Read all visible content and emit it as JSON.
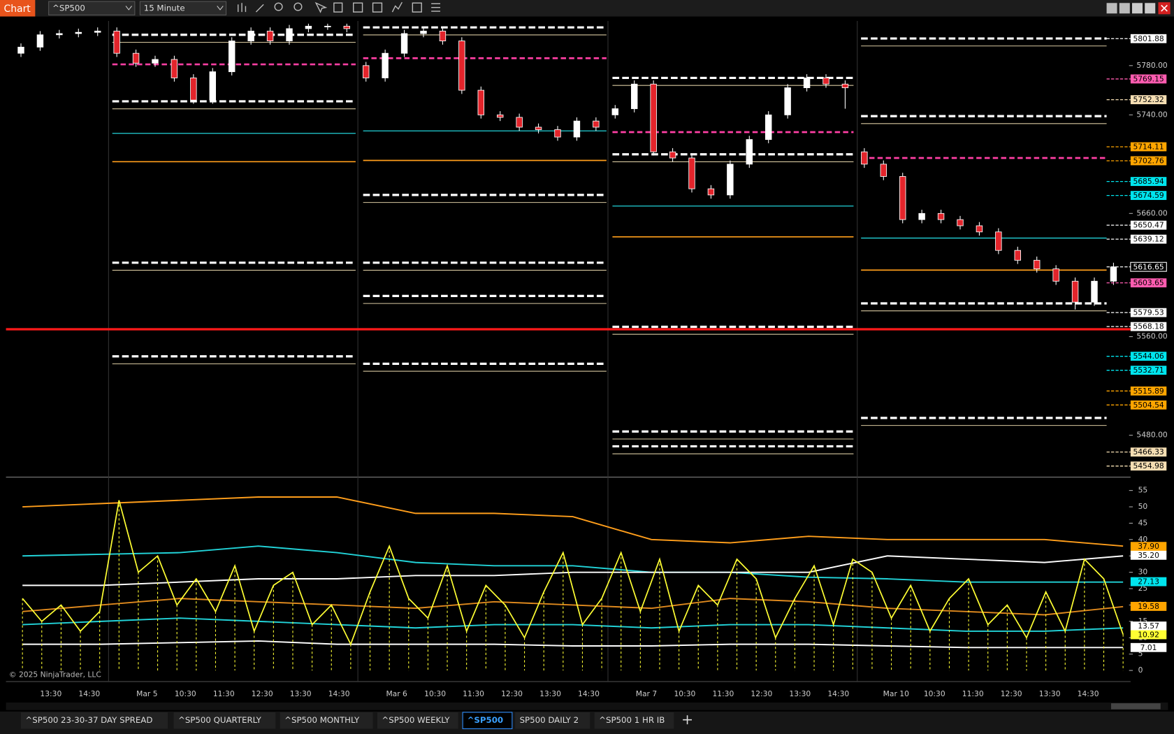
{
  "toolbar": {
    "title": "Chart",
    "instrument": "^SP500",
    "interval": "15 Minute"
  },
  "price_panel": {
    "type": "candlestick",
    "ylim": [
      5446,
      5815
    ],
    "yticks": [
      {
        "value": 5480,
        "label": "5480.00"
      },
      {
        "value": 5560,
        "label": "5560.00"
      },
      {
        "value": 5660,
        "label": "5660.00"
      },
      {
        "value": 5740,
        "label": "5740.00"
      },
      {
        "value": 5780,
        "label": "5780.00"
      }
    ],
    "candles": [
      [
        5790,
        5798,
        5787,
        5795
      ],
      [
        5795,
        5808,
        5792,
        5805
      ],
      [
        5805,
        5809,
        5802,
        5806
      ],
      [
        5806,
        5810,
        5803,
        5807
      ],
      [
        5807,
        5811,
        5804,
        5808
      ],
      [
        5808,
        5811,
        5787,
        5790
      ],
      [
        5790,
        5793,
        5779,
        5782
      ],
      [
        5782,
        5788,
        5779,
        5785
      ],
      [
        5785,
        5788,
        5767,
        5770
      ],
      [
        5770,
        5773,
        5749,
        5752
      ],
      [
        5752,
        5778,
        5749,
        5775
      ],
      [
        5775,
        5803,
        5772,
        5800
      ],
      [
        5800,
        5811,
        5797,
        5808
      ],
      [
        5808,
        5811,
        5797,
        5800
      ],
      [
        5800,
        5813,
        5797,
        5810
      ],
      [
        5810,
        5814,
        5807,
        5812
      ],
      [
        5812,
        5814,
        5809,
        5812
      ],
      [
        5812,
        5814,
        5807,
        5810
      ],
      [
        5780,
        5783,
        5767,
        5770
      ],
      [
        5770,
        5793,
        5767,
        5790
      ],
      [
        5790,
        5809,
        5787,
        5806
      ],
      [
        5806,
        5811,
        5803,
        5808
      ],
      [
        5808,
        5811,
        5797,
        5800
      ],
      [
        5800,
        5803,
        5757,
        5760
      ],
      [
        5760,
        5763,
        5737,
        5740
      ],
      [
        5740,
        5743,
        5735,
        5738
      ],
      [
        5738,
        5741,
        5727,
        5730
      ],
      [
        5730,
        5733,
        5725,
        5728
      ],
      [
        5728,
        5731,
        5719,
        5722
      ],
      [
        5722,
        5738,
        5719,
        5735
      ],
      [
        5735,
        5738,
        5727,
        5730
      ],
      [
        5740,
        5748,
        5737,
        5745
      ],
      [
        5745,
        5768,
        5742,
        5765
      ],
      [
        5765,
        5768,
        5707,
        5710
      ],
      [
        5710,
        5713,
        5702,
        5705
      ],
      [
        5705,
        5708,
        5677,
        5680
      ],
      [
        5680,
        5683,
        5672,
        5675
      ],
      [
        5675,
        5703,
        5672,
        5700
      ],
      [
        5700,
        5723,
        5697,
        5720
      ],
      [
        5720,
        5743,
        5717,
        5740
      ],
      [
        5740,
        5765,
        5737,
        5762
      ],
      [
        5762,
        5773,
        5759,
        5770
      ],
      [
        5770,
        5773,
        5762,
        5765
      ],
      [
        5765,
        5768,
        5745,
        5762
      ],
      [
        5710,
        5713,
        5697,
        5700
      ],
      [
        5700,
        5703,
        5687,
        5690
      ],
      [
        5690,
        5693,
        5652,
        5655
      ],
      [
        5655,
        5663,
        5652,
        5660
      ],
      [
        5660,
        5663,
        5652,
        5655
      ],
      [
        5655,
        5658,
        5647,
        5650
      ],
      [
        5650,
        5653,
        5642,
        5645
      ],
      [
        5645,
        5648,
        5627,
        5630
      ],
      [
        5630,
        5633,
        5619,
        5622
      ],
      [
        5622,
        5625,
        5612,
        5615
      ],
      [
        5615,
        5618,
        5602,
        5605
      ],
      [
        5605,
        5608,
        5582,
        5588
      ],
      [
        5588,
        5608,
        5585,
        5605
      ],
      [
        5605,
        5620,
        5602,
        5616.65
      ]
    ],
    "sessions": [
      {
        "levels": [
          5805,
          5751,
          5620,
          5544
        ],
        "pink": 5781,
        "orange": 5702,
        "cyan": 5725
      },
      {
        "levels": [
          5811,
          5675,
          5620,
          5593,
          5538
        ],
        "pink": 5786,
        "orange": 5703,
        "cyan": 5727
      },
      {
        "levels": [
          5770,
          5708,
          5568,
          5483,
          5471
        ],
        "pink": 5726,
        "orange": 5641,
        "cyan": 5666
      },
      {
        "levels": [
          5802,
          5739,
          5587,
          5494
        ],
        "pink": 5705,
        "orange": 5614,
        "cyan": 5640
      }
    ],
    "red_line": 5566,
    "markers": [
      {
        "value": 5801.88,
        "color": "#ffffff"
      },
      {
        "value": 5769.15,
        "color": "#ff5cb0"
      },
      {
        "value": 5752.32,
        "color": "#f5deb3"
      },
      {
        "value": 5714.11,
        "color": "#ffa500"
      },
      {
        "value": 5702.76,
        "color": "#ffa500"
      },
      {
        "value": 5685.94,
        "color": "#00e5ee"
      },
      {
        "value": 5674.59,
        "color": "#00e5ee"
      },
      {
        "value": 5650.47,
        "color": "#ffffff"
      },
      {
        "value": 5639.12,
        "color": "#ffffff"
      },
      {
        "value": 5616.65,
        "color": "#000000"
      },
      {
        "value": 5603.65,
        "color": "#ff5cb0"
      },
      {
        "value": 5579.53,
        "color": "#ffffff"
      },
      {
        "value": 5568.18,
        "color": "#ffffff"
      },
      {
        "value": 5544.06,
        "color": "#00e5ee"
      },
      {
        "value": 5532.71,
        "color": "#00e5ee"
      },
      {
        "value": 5515.89,
        "color": "#ffa500"
      },
      {
        "value": 5504.54,
        "color": "#ffa500"
      },
      {
        "value": 5466.33,
        "color": "#f5deb3"
      },
      {
        "value": 5454.98,
        "color": "#f5deb3"
      }
    ]
  },
  "indicator_panel": {
    "type": "line",
    "ylim": [
      -3.4,
      58.4
    ],
    "yticks": [
      0,
      5,
      10,
      15,
      20,
      25,
      30,
      35,
      40,
      45,
      50,
      55
    ],
    "series": [
      {
        "color": "#ff9e1b",
        "values": [
          50,
          51,
          52,
          53,
          53,
          48,
          48,
          47,
          40,
          39,
          41,
          40,
          40,
          40,
          38
        ]
      },
      {
        "color": "#22d3d8",
        "values": [
          35,
          35.5,
          36,
          38,
          36,
          33,
          32,
          32,
          30,
          30,
          28.5,
          28,
          27,
          27,
          27
        ]
      },
      {
        "color": "#ffffff",
        "values": [
          26,
          26,
          27,
          28,
          28,
          29,
          29,
          30,
          30,
          30,
          30,
          35,
          34,
          33,
          35
        ]
      },
      {
        "color": "#e08a1e",
        "values": [
          18,
          20,
          22,
          21,
          20,
          19,
          21,
          20,
          19,
          22,
          21,
          19,
          18,
          17,
          19.5
        ]
      },
      {
        "color": "#22d3d8",
        "values": [
          14,
          15,
          16,
          15,
          14,
          13,
          14,
          14,
          13,
          14,
          14,
          13,
          12,
          12,
          13
        ]
      },
      {
        "color": "#ffffff",
        "values": [
          8,
          8,
          8.5,
          9,
          8,
          8,
          8,
          7.5,
          7.5,
          8,
          8,
          7.5,
          7,
          7,
          7
        ]
      },
      {
        "color": "#ffff33",
        "bars": true,
        "values": [
          22,
          15,
          20,
          12,
          18,
          52,
          30,
          35,
          20,
          28,
          18,
          32,
          12,
          26,
          30,
          14,
          20,
          8,
          24,
          38,
          22,
          16,
          32,
          12,
          26,
          20,
          10,
          24,
          36,
          14,
          22,
          36,
          18,
          34,
          12,
          26,
          20,
          34,
          28,
          10,
          22,
          32,
          14,
          34,
          30,
          16,
          26,
          12,
          22,
          28,
          14,
          20,
          10,
          24,
          12,
          34,
          28,
          11
        ]
      }
    ],
    "markers": [
      {
        "value": 37.9,
        "label": "37.90",
        "color": "#ffa500"
      },
      {
        "value": 35.2,
        "label": "35.20",
        "color": "#ffffff"
      },
      {
        "value": 27.13,
        "color": "#00e5ee"
      },
      {
        "value": 19.58,
        "color": "#ffa500"
      },
      {
        "value": 13.57,
        "color": "#ffffff"
      },
      {
        "value": 10.92,
        "color": "#ffff33"
      },
      {
        "value": 7.01,
        "color": "#ffffff"
      }
    ]
  },
  "time_axis": {
    "labels": [
      "13:30",
      "14:30",
      "Mar 5",
      "10:30",
      "11:30",
      "12:30",
      "13:30",
      "14:30",
      "Mar 6",
      "10:30",
      "11:30",
      "12:30",
      "13:30",
      "14:30",
      "Mar 7",
      "10:30",
      "11:30",
      "12:30",
      "13:30",
      "14:30",
      "Mar 10",
      "10:30",
      "11:30",
      "12:30",
      "13:30",
      "14:30"
    ]
  },
  "copyright": "© 2025 NinjaTrader, LLC",
  "tabs": [
    "^SP500 23-30-37 DAY SPREAD",
    "^SP500 QUARTERLY",
    "^SP500 MONTHLY",
    "^SP500 WEEKLY",
    "^SP500",
    "SP500 DAILY 2",
    "^SP500 1 HR IB"
  ],
  "active_tab": 4
}
